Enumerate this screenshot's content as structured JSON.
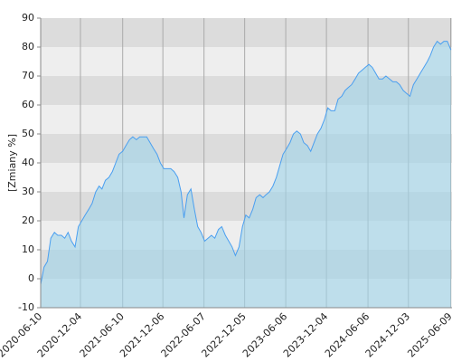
{
  "chart_data": {
    "type": "area",
    "ylabel": "[Zmiany %]",
    "x": [
      "2020-06-10",
      "2020-06-25",
      "2020-07-10",
      "2020-07-25",
      "2020-08-10",
      "2020-08-25",
      "2020-09-10",
      "2020-09-25",
      "2020-10-10",
      "2020-10-25",
      "2020-11-10",
      "2020-11-25",
      "2020-12-10",
      "2020-12-25",
      "2021-01-10",
      "2021-01-25",
      "2021-02-10",
      "2021-02-25",
      "2021-03-10",
      "2021-03-25",
      "2021-04-10",
      "2021-04-25",
      "2021-05-10",
      "2021-05-25",
      "2021-06-10",
      "2021-06-25",
      "2021-07-10",
      "2021-07-25",
      "2021-08-10",
      "2021-08-25",
      "2021-09-10",
      "2021-09-25",
      "2021-10-10",
      "2021-10-25",
      "2021-11-10",
      "2021-11-25",
      "2021-12-10",
      "2021-12-25",
      "2022-01-10",
      "2022-01-25",
      "2022-02-10",
      "2022-02-25",
      "2022-03-10",
      "2022-03-25",
      "2022-04-10",
      "2022-04-25",
      "2022-05-10",
      "2022-05-25",
      "2022-06-10",
      "2022-06-25",
      "2022-07-10",
      "2022-07-25",
      "2022-08-10",
      "2022-08-25",
      "2022-09-10",
      "2022-09-25",
      "2022-10-10",
      "2022-10-25",
      "2022-11-10",
      "2022-11-25",
      "2022-12-10",
      "2022-12-25",
      "2023-01-10",
      "2023-01-25",
      "2023-02-10",
      "2023-02-25",
      "2023-03-10",
      "2023-03-25",
      "2023-04-10",
      "2023-04-25",
      "2023-05-10",
      "2023-05-25",
      "2023-06-10",
      "2023-06-25",
      "2023-07-10",
      "2023-07-25",
      "2023-08-10",
      "2023-08-25",
      "2023-09-10",
      "2023-09-25",
      "2023-10-10",
      "2023-10-25",
      "2023-11-10",
      "2023-11-25",
      "2023-12-10",
      "2023-12-25",
      "2024-01-10",
      "2024-01-25",
      "2024-02-10",
      "2024-02-25",
      "2024-03-10",
      "2024-03-25",
      "2024-04-10",
      "2024-04-25",
      "2024-05-10",
      "2024-05-25",
      "2024-06-10",
      "2024-06-25",
      "2024-07-10",
      "2024-07-25",
      "2024-08-10",
      "2024-08-25",
      "2024-09-10",
      "2024-09-25",
      "2024-10-10",
      "2024-10-25",
      "2024-11-10",
      "2024-11-25",
      "2024-12-10",
      "2024-12-25",
      "2025-01-10",
      "2025-01-25",
      "2025-02-10",
      "2025-02-25",
      "2025-03-10",
      "2025-03-25",
      "2025-04-10",
      "2025-04-25",
      "2025-05-10",
      "2025-05-25",
      "2025-06-10"
    ],
    "values": [
      -2,
      4,
      6,
      14,
      16,
      15,
      15,
      14,
      16,
      13,
      11,
      18,
      20,
      22,
      24,
      26,
      30,
      32,
      31,
      34,
      35,
      37,
      40,
      43,
      44,
      46,
      48,
      49,
      48,
      49,
      49,
      49,
      47,
      45,
      43,
      40,
      38,
      38,
      38,
      37,
      35,
      30,
      21,
      29,
      31,
      24,
      18,
      16,
      13,
      14,
      15,
      14,
      17,
      18,
      15,
      13,
      11,
      8,
      11,
      18,
      22,
      21,
      24,
      28,
      29,
      28,
      29,
      30,
      32,
      35,
      39,
      43,
      45,
      47,
      50,
      51,
      50,
      47,
      46,
      44,
      47,
      50,
      52,
      55,
      59,
      58,
      58,
      62,
      63,
      65,
      66,
      67,
      69,
      71,
      72,
      73,
      74,
      73,
      71,
      69,
      69,
      70,
      69,
      68,
      68,
      67,
      65,
      64,
      63,
      67,
      69,
      71,
      73,
      75,
      77,
      80,
      82,
      81,
      82,
      82,
      79
    ],
    "color": "#4a9ff0",
    "fill_color": "#9fd3ea",
    "xlim": [
      "2020-06-10",
      "2025-06-15"
    ],
    "xticks": [
      "2020-06-10",
      "2020-12-04",
      "2021-06-10",
      "2021-12-06",
      "2022-06-07",
      "2022-12-05",
      "2023-06-06",
      "2023-12-04",
      "2024-06-06",
      "2024-12-03",
      "2025-06-09"
    ],
    "ylim": [
      -10,
      90
    ],
    "yticks": [
      -10,
      0,
      10,
      20,
      30,
      40,
      50,
      60,
      70,
      80,
      90
    ],
    "grid": true,
    "bands": true
  }
}
